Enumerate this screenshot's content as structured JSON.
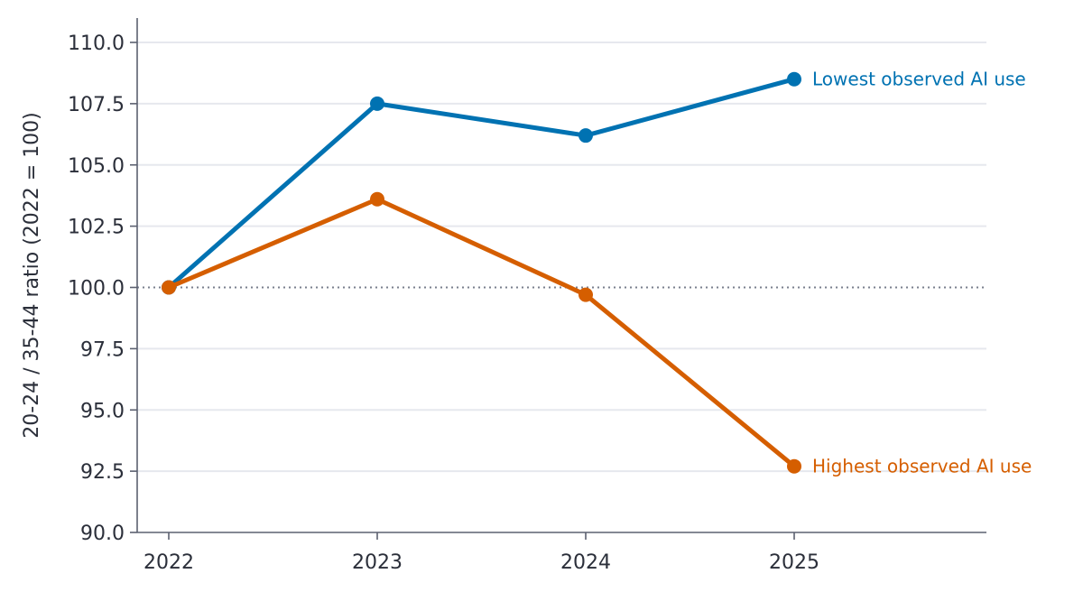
{
  "chart_data": {
    "type": "line",
    "title": "",
    "xlabel": "",
    "ylabel": "20-24 / 35-44 ratio (2022 = 100)",
    "x": [
      "2022",
      "2023",
      "2024",
      "2025"
    ],
    "ylim": [
      90.0,
      110.0
    ],
    "yticks": [
      "90.0",
      "92.5",
      "95.0",
      "97.5",
      "100.0",
      "102.5",
      "105.0",
      "107.5",
      "110.0"
    ],
    "grid": "horizontal",
    "reference_line": 100.0,
    "legend": "direct labels at line ends",
    "series": [
      {
        "name": "Lowest observed AI use",
        "color": "#0072b2",
        "values": [
          100.0,
          107.5,
          106.2,
          108.5
        ]
      },
      {
        "name": "Highest observed AI use",
        "color": "#d55e00",
        "values": [
          100.0,
          103.6,
          99.7,
          92.7
        ]
      }
    ]
  }
}
